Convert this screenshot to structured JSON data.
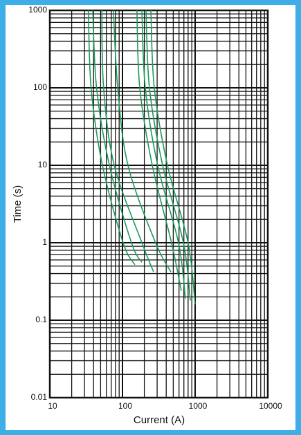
{
  "chart_data": {
    "type": "line",
    "xlabel": "Current (A)",
    "ylabel": "Time (s)",
    "xscale": "log",
    "yscale": "log",
    "grid": true,
    "xlim": [
      10,
      10000
    ],
    "ylim": [
      0.01,
      1000
    ],
    "xticks": [
      10,
      100,
      1000,
      10000
    ],
    "yticks": [
      0.01,
      0.1,
      1,
      10,
      100,
      1000
    ],
    "x_minor_ticks": [
      20,
      30,
      40,
      50,
      60,
      70,
      80,
      90,
      200,
      300,
      400,
      500,
      600,
      700,
      800,
      900,
      2000,
      3000,
      4000,
      5000,
      6000,
      7000,
      8000,
      9000
    ],
    "y_minor_ticks": [
      0.02,
      0.03,
      0.04,
      0.05,
      0.06,
      0.07,
      0.08,
      0.09,
      0.2,
      0.3,
      0.4,
      0.5,
      0.6,
      0.7,
      0.8,
      0.9,
      2,
      3,
      4,
      5,
      6,
      7,
      8,
      9,
      20,
      30,
      40,
      50,
      60,
      70,
      80,
      90,
      200,
      300,
      400,
      500,
      600,
      700,
      800,
      900
    ],
    "series": [
      {
        "color": "#1a9a5a",
        "x": [
          34,
          37,
          53,
          102,
          148
        ],
        "values": [
          1000,
          100,
          10,
          1,
          0.52
        ]
      },
      {
        "color": "#1a9a5a",
        "x": [
          39,
          44,
          66,
          133,
          185
        ],
        "values": [
          1000,
          100,
          10,
          1,
          0.56
        ]
      },
      {
        "color": "#1a9a5a",
        "x": [
          52,
          55,
          77,
          185,
          268
        ],
        "values": [
          1000,
          100,
          10,
          1,
          0.42
        ]
      },
      {
        "color": "#1a9a5a",
        "x": [
          75,
          86,
          119,
          285,
          464
        ],
        "values": [
          1000,
          100,
          10,
          1,
          0.42
        ]
      },
      {
        "color": "#1a9a5a",
        "x": [
          158,
          173,
          257,
          473,
          645
        ],
        "values": [
          1000,
          100,
          10,
          1,
          0.24
        ]
      },
      {
        "color": "#1a9a5a",
        "x": [
          185,
          206,
          305,
          590,
          736
        ],
        "values": [
          1000,
          100,
          10,
          1,
          0.19
        ]
      },
      {
        "color": "#1a9a5a",
        "x": [
          211,
          235,
          357,
          690,
          860
        ],
        "values": [
          1000,
          100,
          10,
          1,
          0.18
        ]
      },
      {
        "color": "#1a9a5a",
        "x": [
          246,
          274,
          416,
          800,
          1000
        ],
        "values": [
          1000,
          100,
          10,
          1,
          0.16
        ]
      }
    ]
  }
}
